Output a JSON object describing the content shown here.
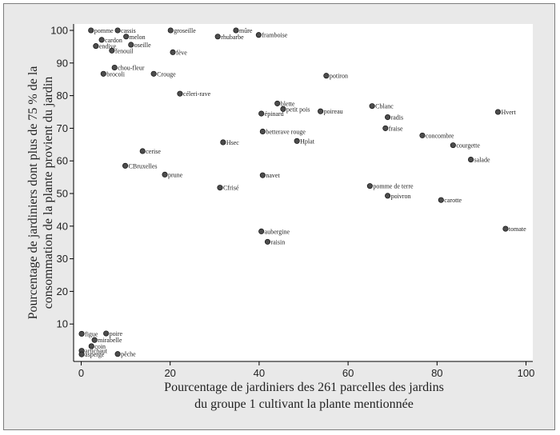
{
  "chart_data": {
    "type": "scatter",
    "title": "",
    "xlabel": [
      "Pourcentage de jardiniers des 261 parcelles des jardins",
      "du groupe 1 cultivant la plante mentionnée"
    ],
    "ylabel": [
      "Pourcentage de jardiniers dont plus de 75 % de la",
      "consommation de la plante provient du jardin"
    ],
    "xlim": [
      0,
      100
    ],
    "ylim": [
      0,
      100
    ],
    "xticks": [
      0,
      20,
      40,
      60,
      80,
      100
    ],
    "yticks": [
      10,
      20,
      30,
      40,
      50,
      60,
      70,
      80,
      90,
      100
    ],
    "grid": false,
    "colors": {
      "point": "#4d4d4d",
      "point_stroke": "#111111",
      "plot_bg": "#ffffff",
      "outer_bg": "#e9e9e9"
    },
    "points": [
      {
        "label": "pomme",
        "x": 2.2,
        "y": 100
      },
      {
        "label": "cassis",
        "x": 8.2,
        "y": 100
      },
      {
        "label": "groseille",
        "x": 20.1,
        "y": 100
      },
      {
        "label": "mûre",
        "x": 34.8,
        "y": 100
      },
      {
        "label": "cardon",
        "x": 4.6,
        "y": 97.1
      },
      {
        "label": "melon",
        "x": 10.1,
        "y": 98.1
      },
      {
        "label": "rhubarbe",
        "x": 30.7,
        "y": 98.1
      },
      {
        "label": "framboise",
        "x": 39.9,
        "y": 98.6
      },
      {
        "label": "endive",
        "x": 3.3,
        "y": 95.2
      },
      {
        "label": "oseille",
        "x": 11.2,
        "y": 95.6
      },
      {
        "label": "fenouil",
        "x": 6.9,
        "y": 93.8
      },
      {
        "label": "fève",
        "x": 20.6,
        "y": 93.3
      },
      {
        "label": "chou-fleur",
        "x": 7.5,
        "y": 88.6
      },
      {
        "label": "brocoli",
        "x": 5.0,
        "y": 86.7
      },
      {
        "label": "Crouge",
        "x": 16.3,
        "y": 86.7
      },
      {
        "label": "potiron",
        "x": 55.1,
        "y": 86.1
      },
      {
        "label": "céleri-rave",
        "x": 22.2,
        "y": 80.6
      },
      {
        "label": "blette",
        "x": 44.1,
        "y": 77.6
      },
      {
        "label": "petit pois",
        "x": 45.4,
        "y": 75.9
      },
      {
        "label": "épinard",
        "x": 40.5,
        "y": 74.5
      },
      {
        "label": "poireau",
        "x": 53.8,
        "y": 75.2
      },
      {
        "label": "Cblanc",
        "x": 65.4,
        "y": 76.8
      },
      {
        "label": "Hvert",
        "x": 93.7,
        "y": 75.0
      },
      {
        "label": "radis",
        "x": 68.9,
        "y": 73.4
      },
      {
        "label": "fraise",
        "x": 68.4,
        "y": 70.0
      },
      {
        "label": "betterave rouge",
        "x": 40.8,
        "y": 69.0
      },
      {
        "label": "concombre",
        "x": 76.7,
        "y": 67.8
      },
      {
        "label": "Hplat",
        "x": 48.5,
        "y": 66.1
      },
      {
        "label": "Hsec",
        "x": 31.9,
        "y": 65.7
      },
      {
        "label": "courgette",
        "x": 83.6,
        "y": 64.8
      },
      {
        "label": "cerise",
        "x": 13.8,
        "y": 63.0
      },
      {
        "label": "salade",
        "x": 87.6,
        "y": 60.4
      },
      {
        "label": "CBruxelles",
        "x": 9.9,
        "y": 58.5
      },
      {
        "label": "prune",
        "x": 18.8,
        "y": 55.8
      },
      {
        "label": "navet",
        "x": 40.8,
        "y": 55.6
      },
      {
        "label": "Cfrisé",
        "x": 31.2,
        "y": 51.8
      },
      {
        "label": "pomme de terre",
        "x": 64.9,
        "y": 52.3
      },
      {
        "label": "poivron",
        "x": 68.9,
        "y": 49.3
      },
      {
        "label": "carotte",
        "x": 80.9,
        "y": 48.0
      },
      {
        "label": "tomate",
        "x": 95.4,
        "y": 39.2
      },
      {
        "label": "aubergine",
        "x": 40.5,
        "y": 38.4
      },
      {
        "label": "raisin",
        "x": 41.9,
        "y": 35.2
      },
      {
        "label": "figue",
        "x": 0.1,
        "y": 7.0
      },
      {
        "label": "poire",
        "x": 5.6,
        "y": 7.1
      },
      {
        "label": "mirabelle",
        "x": 3.0,
        "y": 5.1
      },
      {
        "label": "coin",
        "x": 2.3,
        "y": 3.2
      },
      {
        "label": "artichaut",
        "x": 0.1,
        "y": 1.8
      },
      {
        "label": "asperge",
        "x": 0.1,
        "y": 0.7
      },
      {
        "label": "pêche",
        "x": 8.2,
        "y": 0.8
      }
    ]
  }
}
